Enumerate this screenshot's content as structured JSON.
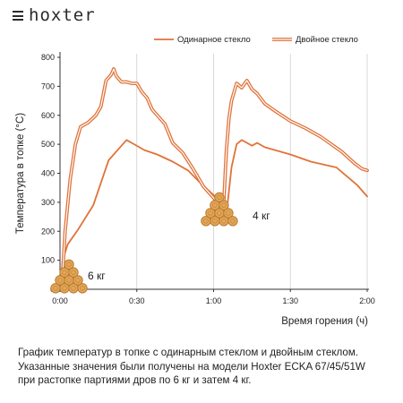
{
  "brand": {
    "name": "hoxter",
    "menu_icon": "hamburger-icon"
  },
  "colors": {
    "series": "#e0733a",
    "axis": "#333333",
    "wood": "#e3a757",
    "wood_ring": "#b97a32"
  },
  "chart_data": {
    "type": "line",
    "ylabel": "Температура в топке (°C)",
    "xlabel": "Время горения (ч)",
    "xlim": [
      0,
      120
    ],
    "ylim": [
      0,
      800
    ],
    "x_ticks": [
      {
        "value": 0,
        "label": "0:00"
      },
      {
        "value": 30,
        "label": "0:30"
      },
      {
        "value": 60,
        "label": "1:00"
      },
      {
        "value": 90,
        "label": "1:30"
      },
      {
        "value": 120,
        "label": "2:00"
      }
    ],
    "y_ticks": [
      0,
      100,
      200,
      300,
      400,
      500,
      600,
      700,
      800
    ],
    "grid": "vertical",
    "legend_position": "top-right",
    "series": [
      {
        "name": "Одинарное стекло",
        "style": "single",
        "x": [
          0,
          1,
          3,
          7,
          13,
          19,
          22,
          26,
          28,
          33,
          38,
          44,
          50,
          55,
          60,
          64,
          65,
          66,
          67,
          69,
          71,
          73,
          75,
          77,
          80,
          84,
          90,
          98,
          108,
          112,
          116,
          120
        ],
        "y": [
          0,
          100,
          155,
          205,
          290,
          445,
          475,
          515,
          505,
          480,
          465,
          440,
          410,
          365,
          325,
          295,
          260,
          340,
          420,
          500,
          515,
          505,
          495,
          505,
          490,
          480,
          465,
          440,
          420,
          390,
          360,
          320
        ]
      },
      {
        "name": "Двойное стекло",
        "style": "double",
        "x": [
          0,
          1,
          2,
          4,
          6,
          8,
          11,
          14,
          16,
          18,
          20,
          21,
          22,
          24,
          26,
          28,
          30,
          32,
          34,
          36,
          38,
          41,
          44,
          48,
          52,
          56,
          60,
          63,
          64,
          65,
          66,
          67,
          69,
          71,
          73,
          75,
          77,
          80,
          84,
          90,
          96,
          102,
          110,
          115,
          118,
          120
        ],
        "y": [
          0,
          50,
          200,
          380,
          500,
          560,
          575,
          600,
          630,
          720,
          740,
          760,
          735,
          715,
          715,
          710,
          710,
          680,
          660,
          620,
          600,
          570,
          505,
          470,
          415,
          355,
          315,
          290,
          300,
          480,
          590,
          650,
          710,
          695,
          720,
          690,
          675,
          640,
          615,
          580,
          555,
          525,
          475,
          435,
          415,
          410
        ]
      }
    ],
    "annotations": [
      {
        "label": "6 кг",
        "x": 0,
        "y": 0
      },
      {
        "label": "4 кг",
        "x": 64,
        "y": 290
      }
    ]
  },
  "caption": [
    "График температур в топке с одинарным стеклом и двойным стеклом.",
    "Указанные значения были получены на модели Hoxter ECKA 67/45/51W",
    "при растопке партиями дров по 6 кг и затем 4 кг."
  ]
}
